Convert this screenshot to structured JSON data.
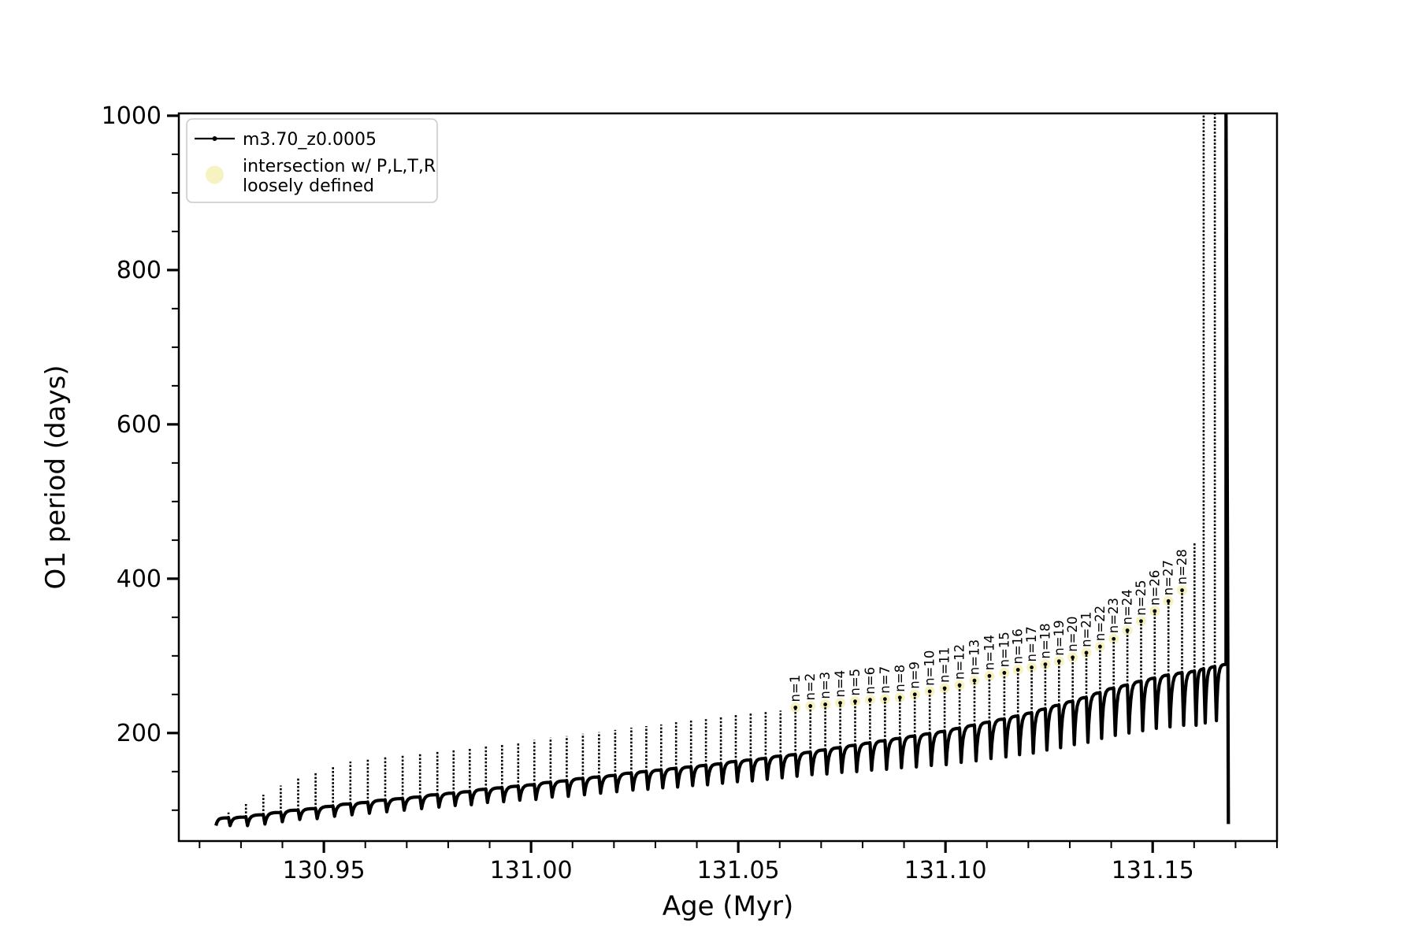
{
  "figure": {
    "background": "#ffffff",
    "line_color": "#000000"
  },
  "legend": {
    "border_color": "#c9c9c9",
    "background": "#ffffff",
    "entries": [
      {
        "type": "line-dot",
        "color": "#000000",
        "label": "m3.70_z0.0005"
      },
      {
        "type": "dot",
        "color": "#f7f2c2",
        "label_line1": "intersection w/ P,L,T,R",
        "label_line2": "loosely defined"
      }
    ]
  },
  "chart_data": {
    "type": "line",
    "series_name": "m3.70_z0.0005",
    "xlabel": "Age (Myr)",
    "ylabel": "O1 period (days)",
    "xlim": [
      130.915,
      131.18
    ],
    "ylim": [
      60,
      1003
    ],
    "grid": false,
    "legend_position": "upper left",
    "x_ticks": {
      "major": [
        130.95,
        131.0,
        131.05,
        131.1,
        131.15
      ],
      "major_labels": [
        "130.95",
        "131.00",
        "131.05",
        "131.10",
        "131.15"
      ],
      "minor_step": 0.01
    },
    "y_ticks": {
      "major": [
        200,
        400,
        600,
        800,
        1000
      ],
      "major_labels": [
        "200",
        "400",
        "600",
        "800",
        "1000"
      ],
      "minor_step": 50
    },
    "pulse_format": [
      "age_Myr",
      "base_period",
      "peak_period",
      "dip_period",
      "label"
    ],
    "pulses": [
      [
        130.927,
        90,
        97,
        80
      ],
      [
        130.9312,
        91,
        108,
        80
      ],
      [
        130.9354,
        94,
        120,
        82
      ],
      [
        130.9396,
        97,
        132,
        85
      ],
      [
        130.9438,
        100,
        142,
        88
      ],
      [
        130.948,
        102,
        150,
        89
      ],
      [
        130.9522,
        105,
        157,
        92
      ],
      [
        130.9564,
        108,
        163,
        94
      ],
      [
        130.9606,
        110,
        167,
        96
      ],
      [
        130.9648,
        113,
        170,
        98
      ],
      [
        130.969,
        115,
        171,
        100
      ],
      [
        130.9732,
        117,
        174,
        102
      ],
      [
        130.9774,
        120,
        177,
        104
      ],
      [
        130.9813,
        122,
        179,
        106
      ],
      [
        130.9852,
        124,
        181,
        107
      ],
      [
        130.9891,
        127,
        184,
        110
      ],
      [
        130.993,
        129,
        186,
        111
      ],
      [
        130.9969,
        131,
        188,
        113
      ],
      [
        131.0008,
        133,
        191,
        114
      ],
      [
        131.0047,
        136,
        194,
        117
      ],
      [
        131.0086,
        138,
        196,
        118
      ],
      [
        131.0125,
        141,
        199,
        120
      ],
      [
        131.0164,
        143,
        201,
        122
      ],
      [
        131.0203,
        145,
        204,
        124
      ],
      [
        131.0242,
        148,
        207,
        126
      ],
      [
        131.0278,
        150,
        209,
        127
      ],
      [
        131.0314,
        152,
        211,
        129
      ],
      [
        131.035,
        154,
        214,
        130
      ],
      [
        131.0386,
        156,
        216,
        132
      ],
      [
        131.0422,
        158,
        218,
        133
      ],
      [
        131.0458,
        160,
        221,
        135
      ],
      [
        131.0494,
        163,
        224,
        137
      ],
      [
        131.053,
        165,
        226,
        138
      ],
      [
        131.0566,
        167,
        228,
        140
      ],
      [
        131.0602,
        170,
        229,
        142
      ],
      [
        131.0638,
        172,
        233,
        144,
        "n=1"
      ],
      [
        131.0674,
        175,
        235,
        146,
        "n=2"
      ],
      [
        131.071,
        178,
        237,
        147,
        "n=3"
      ],
      [
        131.0746,
        181,
        239,
        149,
        "n=4"
      ],
      [
        131.0782,
        184,
        241,
        150,
        "n=5"
      ],
      [
        131.0818,
        187,
        243,
        152,
        "n=6"
      ],
      [
        131.0854,
        190,
        244,
        153,
        "n=7"
      ],
      [
        131.089,
        193,
        246,
        155,
        "n=8"
      ],
      [
        131.0926,
        196,
        250,
        156,
        "n=9"
      ],
      [
        131.0962,
        199,
        254,
        158,
        "n=10"
      ],
      [
        131.0998,
        202,
        258,
        159,
        "n=11"
      ],
      [
        131.1034,
        206,
        262,
        162,
        "n=12"
      ],
      [
        131.107,
        210,
        268,
        164,
        "n=13"
      ],
      [
        131.1106,
        214,
        274,
        167,
        "n=14"
      ],
      [
        131.1142,
        218,
        278,
        169,
        "n=15"
      ],
      [
        131.1175,
        222,
        282,
        172,
        "n=16"
      ],
      [
        131.1208,
        226,
        285,
        174,
        "n=17"
      ],
      [
        131.1241,
        231,
        289,
        178,
        "n=18"
      ],
      [
        131.1274,
        236,
        293,
        181,
        "n=19"
      ],
      [
        131.1307,
        241,
        298,
        185,
        "n=20"
      ],
      [
        131.134,
        246,
        304,
        188,
        "n=21"
      ],
      [
        131.1373,
        252,
        312,
        193,
        "n=22"
      ],
      [
        131.1406,
        258,
        322,
        197,
        "n=23"
      ],
      [
        131.1439,
        262,
        333,
        200,
        "n=24"
      ],
      [
        131.1472,
        267,
        345,
        203,
        "n=25"
      ],
      [
        131.1505,
        271,
        358,
        206,
        "n=26"
      ],
      [
        131.1538,
        275,
        371,
        208,
        "n=27"
      ],
      [
        131.1571,
        278,
        385,
        210,
        "n=28"
      ],
      [
        131.1601,
        280,
        446,
        210
      ],
      [
        131.1623,
        283,
        1005,
        213
      ],
      [
        131.165,
        286,
        1005,
        216
      ]
    ],
    "final_collapse": {
      "age": 131.1677,
      "base": 289,
      "peak_clipped": 1005,
      "drop_to": 82
    },
    "intersection_marker_color": "#f7f2c2"
  }
}
